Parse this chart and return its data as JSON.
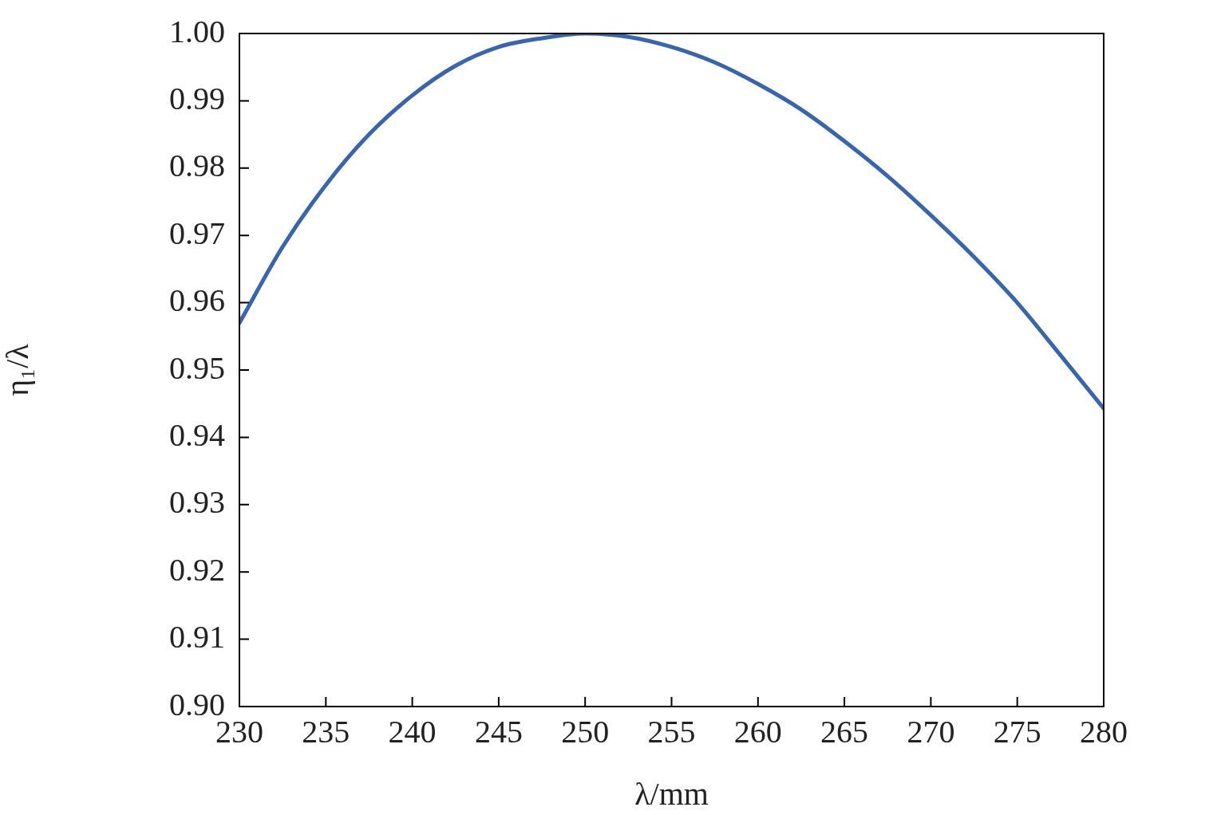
{
  "chart_data": {
    "type": "line",
    "xlabel": "λ/mm",
    "ylabel": "η₁/λ",
    "marker": "none",
    "x": [
      230,
      232.5,
      235,
      237.5,
      240,
      242.5,
      245,
      247.5,
      250,
      252.5,
      255,
      257.5,
      260,
      262.5,
      265,
      267.5,
      270,
      272.5,
      275,
      277.5,
      280
    ],
    "series": [
      {
        "color": "#3a65a8",
        "values": [
          0.957,
          0.9683,
          0.9775,
          0.985,
          0.9908,
          0.9952,
          0.998,
          0.9993,
          1.0,
          0.9995,
          0.998,
          0.9957,
          0.9925,
          0.9887,
          0.984,
          0.9788,
          0.973,
          0.9668,
          0.96,
          0.9522,
          0.9443
        ]
      }
    ],
    "xlim": [
      230,
      280
    ],
    "ylim": [
      0.9,
      1.0
    ],
    "xticks": [
      230,
      235,
      240,
      245,
      250,
      255,
      260,
      265,
      270,
      275,
      280
    ],
    "yticks": [
      {
        "value": 0.9,
        "label": "0.90"
      },
      {
        "value": 0.91,
        "label": "0.91"
      },
      {
        "value": 0.92,
        "label": "0.92"
      },
      {
        "value": 0.93,
        "label": "0.93"
      },
      {
        "value": 0.94,
        "label": "0.94"
      },
      {
        "value": 0.95,
        "label": "0.95"
      },
      {
        "value": 0.96,
        "label": "0.96"
      },
      {
        "value": 0.97,
        "label": "0.97"
      },
      {
        "value": 0.98,
        "label": "0.98"
      },
      {
        "value": 0.99,
        "label": "0.99"
      },
      {
        "value": 1.0,
        "label": "1.00"
      }
    ]
  }
}
